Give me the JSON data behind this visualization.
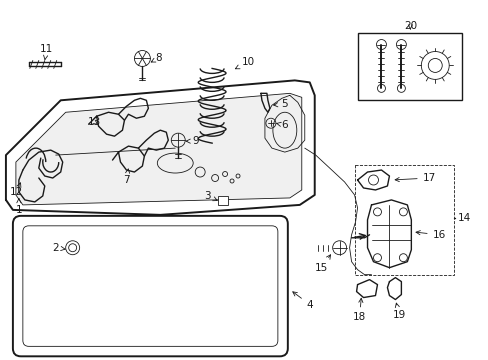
{
  "background_color": "#ffffff",
  "line_color": "#1a1a1a",
  "fig_width": 4.89,
  "fig_height": 3.6,
  "dpi": 100,
  "font_size": 7.5,
  "lw_main": 1.0,
  "lw_thin": 0.6,
  "lw_thick": 1.4
}
